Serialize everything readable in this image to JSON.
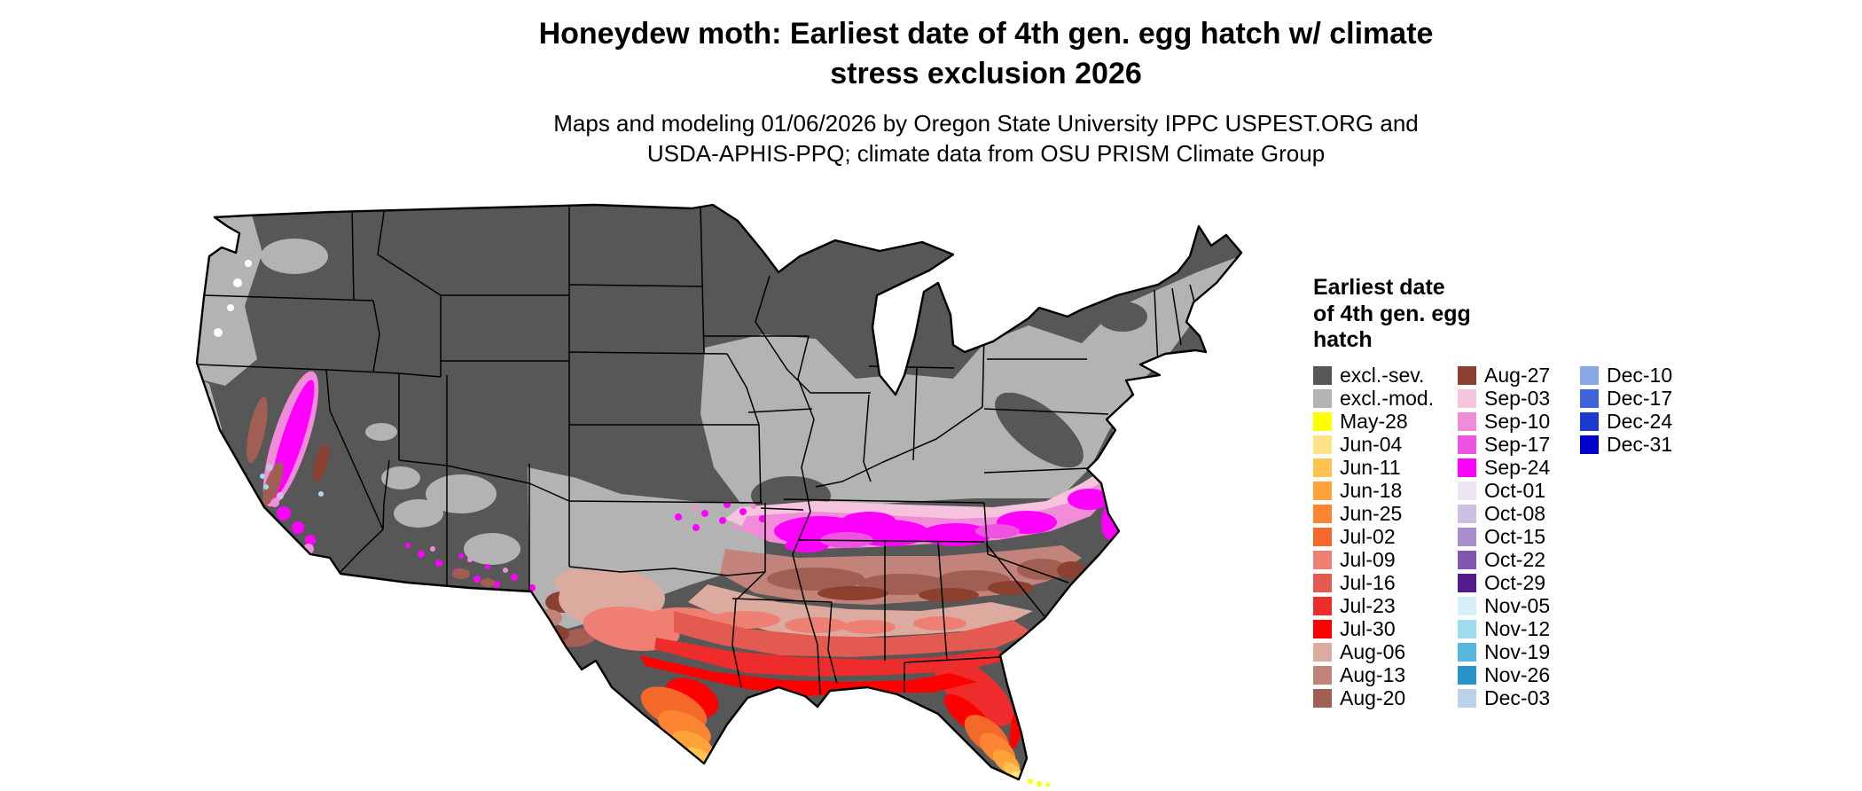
{
  "header": {
    "title_lines": [
      "Honeydew moth: Earliest date of 4th gen. egg hatch w/ climate",
      "stress exclusion 2026"
    ],
    "subtitle_lines": [
      "Maps and modeling 01/06/2026 by Oregon State University IPPC USPEST.ORG and",
      "USDA-APHIS-PPQ; climate data from OSU PRISM Climate Group"
    ]
  },
  "map": {
    "label": "Continental United States map of earliest date of 4th generation egg hatch with climate stress exclusion"
  },
  "legend": {
    "title_lines": [
      "Earliest date",
      "of 4th gen. egg",
      "hatch"
    ],
    "columns": [
      {
        "entries": [
          {
            "label": "excl.-sev.",
            "color": "#575757"
          },
          {
            "label": "excl.-mod.",
            "color": "#b3b3b3"
          },
          {
            "label": "May-28",
            "color": "#ffff00"
          },
          {
            "label": "Jun-04",
            "color": "#ffe385"
          },
          {
            "label": "Jun-11",
            "color": "#fec44f"
          },
          {
            "label": "Jun-18",
            "color": "#fda33a"
          },
          {
            "label": "Jun-25",
            "color": "#fb8532"
          },
          {
            "label": "Jul-02",
            "color": "#f4692a"
          },
          {
            "label": "Jul-09",
            "color": "#ee7f72"
          },
          {
            "label": "Jul-16",
            "color": "#e35a50"
          },
          {
            "label": "Jul-23",
            "color": "#ee2c2c"
          },
          {
            "label": "Jul-30",
            "color": "#ff0000"
          },
          {
            "label": "Aug-06",
            "color": "#ddaaa0"
          },
          {
            "label": "Aug-13",
            "color": "#c2847a"
          },
          {
            "label": "Aug-20",
            "color": "#a05f52"
          }
        ]
      },
      {
        "entries": [
          {
            "label": "Aug-27",
            "color": "#8c4130"
          },
          {
            "label": "Sep-03",
            "color": "#f6c3dd"
          },
          {
            "label": "Sep-10",
            "color": "#f08cd8"
          },
          {
            "label": "Sep-17",
            "color": "#ee52e0"
          },
          {
            "label": "Sep-24",
            "color": "#ff00ff"
          },
          {
            "label": "Oct-01",
            "color": "#ebe5f2"
          },
          {
            "label": "Oct-08",
            "color": "#cdbfe2"
          },
          {
            "label": "Oct-15",
            "color": "#a88dcc"
          },
          {
            "label": "Oct-22",
            "color": "#8157b0"
          },
          {
            "label": "Oct-29",
            "color": "#551a8b"
          },
          {
            "label": "Nov-05",
            "color": "#d6f0f8"
          },
          {
            "label": "Nov-12",
            "color": "#9cdcee"
          },
          {
            "label": "Nov-19",
            "color": "#57b8dd"
          },
          {
            "label": "Nov-26",
            "color": "#2a93c8"
          },
          {
            "label": "Dec-03",
            "color": "#bad2ec"
          }
        ]
      },
      {
        "entries": [
          {
            "label": "Dec-10",
            "color": "#8aa8e6"
          },
          {
            "label": "Dec-17",
            "color": "#3c64d8"
          },
          {
            "label": "Dec-24",
            "color": "#1a3ad0"
          },
          {
            "label": "Dec-31",
            "color": "#0000cd"
          }
        ]
      }
    ]
  }
}
